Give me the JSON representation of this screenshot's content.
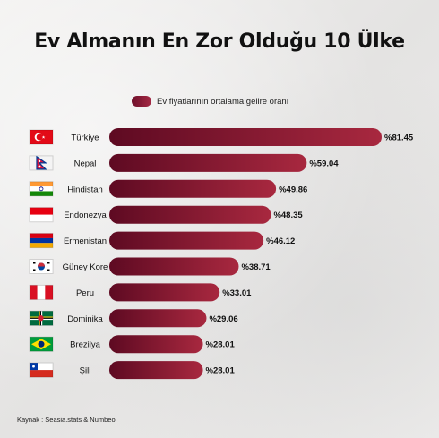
{
  "chart_data": {
    "type": "bar",
    "orientation": "horizontal",
    "title": "Ev Almanın En Zor Olduğu 10 Ülke",
    "legend": {
      "label": "Ev fiyatlarının ortalama gelire oranı",
      "placement": "top"
    },
    "categories": [
      "Türkiye",
      "Nepal",
      "Hindistan",
      "Endonezya",
      "Ermenistan",
      "Güney Kore",
      "Peru",
      "Dominika",
      "Brezilya",
      "Şili"
    ],
    "values": [
      81.45,
      59.04,
      49.86,
      48.35,
      46.12,
      38.71,
      33.01,
      29.06,
      28.01,
      28.01
    ],
    "value_labels": [
      "%81.45",
      "%59.04",
      "%49.86",
      "%48.35",
      "%46.12",
      "%38.71",
      "%33.01",
      "%29.06",
      "%28.01",
      "%28.01"
    ],
    "flags": [
      "turkey-flag",
      "nepal-flag",
      "india-flag",
      "indonesia-flag",
      "armenia-flag",
      "south-korea-flag",
      "peru-flag",
      "dominica-flag",
      "brazil-flag",
      "chile-flag"
    ],
    "colors": {
      "bar_start": "#5e0a22",
      "bar_end": "#a8283f"
    }
  },
  "source": "Kaynak : Seasia.stats & Numbeo"
}
